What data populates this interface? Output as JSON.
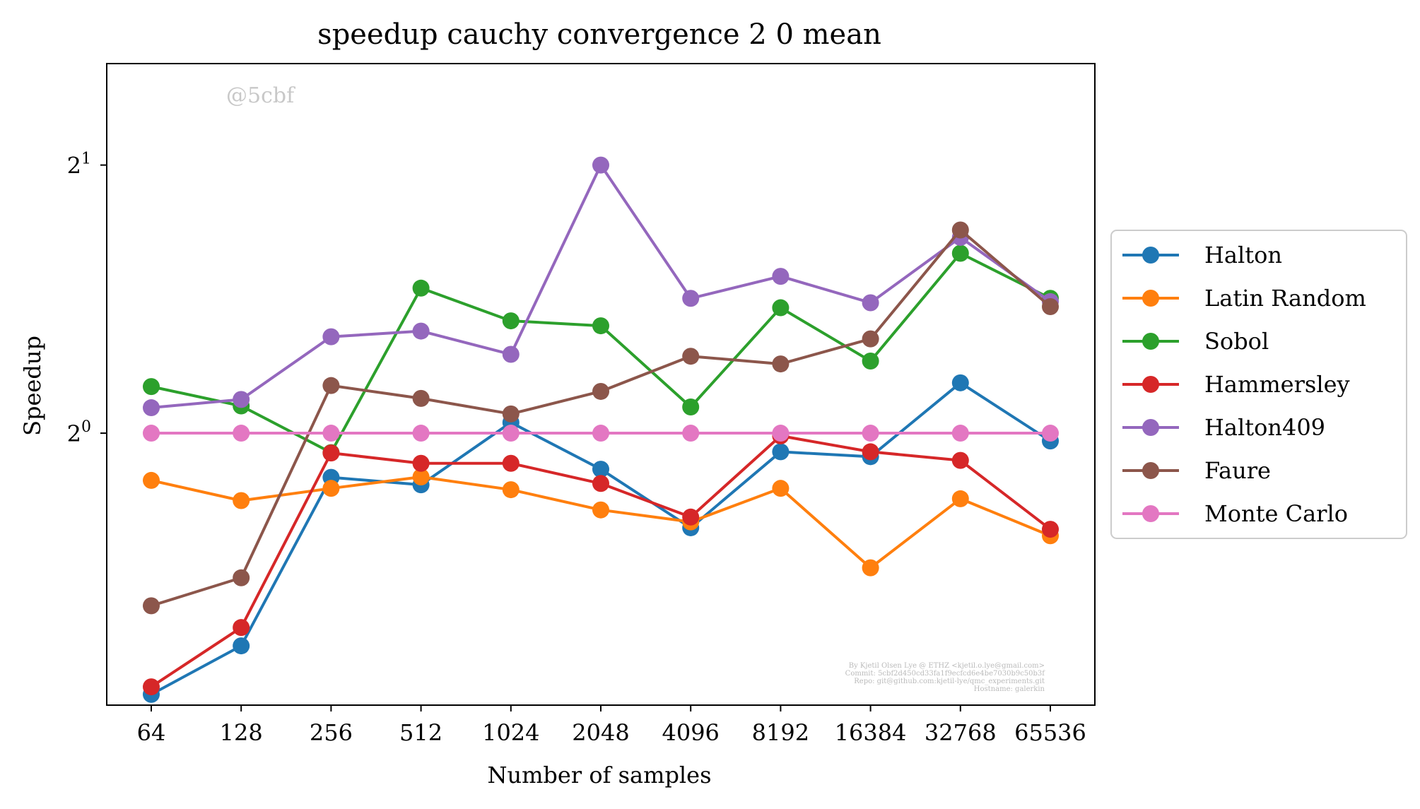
{
  "chart_data": {
    "type": "line",
    "title": "speedup cauchy convergence 2 0 mean",
    "xlabel": "Number of samples",
    "ylabel": "Speedup",
    "y_scale": "log2",
    "ylim": [
      0.495,
      2.6
    ],
    "y_ticks": [
      {
        "value": 1,
        "base": "2",
        "exp": "0"
      },
      {
        "value": 2,
        "base": "2",
        "exp": "1"
      }
    ],
    "categories": [
      "64",
      "128",
      "256",
      "512",
      "1024",
      "2048",
      "4096",
      "8192",
      "16384",
      "32768",
      "65536"
    ],
    "series": [
      {
        "name": "Halton",
        "color": "#1f77b4",
        "values": [
          0.509,
          0.577,
          0.892,
          0.875,
          1.028,
          0.911,
          0.783,
          0.953,
          0.941,
          1.139,
          0.98
        ]
      },
      {
        "name": "Latin Random",
        "color": "#ff7f0e",
        "values": [
          0.885,
          0.84,
          0.867,
          0.893,
          0.864,
          0.82,
          0.795,
          0.867,
          0.706,
          0.844,
          0.767
        ]
      },
      {
        "name": "Sobol",
        "color": "#2ca02c",
        "values": [
          1.128,
          1.073,
          0.951,
          1.455,
          1.337,
          1.32,
          1.07,
          1.383,
          1.205,
          1.592,
          1.417
        ]
      },
      {
        "name": "Hammersley",
        "color": "#d62728",
        "values": [
          0.519,
          0.605,
          0.95,
          0.925,
          0.925,
          0.878,
          0.805,
          0.993,
          0.953,
          0.932,
          0.78
        ]
      },
      {
        "name": "Halton409",
        "color": "#9467bd",
        "values": [
          1.068,
          1.091,
          1.283,
          1.302,
          1.226,
          2.0,
          1.417,
          1.5,
          1.401,
          1.659,
          1.405
        ]
      },
      {
        "name": "Faure",
        "color": "#8c564b",
        "values": [
          0.64,
          0.688,
          1.131,
          1.094,
          1.051,
          1.114,
          1.22,
          1.196,
          1.276,
          1.691,
          1.387
        ]
      },
      {
        "name": "Monte Carlo",
        "color": "#e377c2",
        "values": [
          1,
          1,
          1,
          1,
          1,
          1,
          1,
          1,
          1,
          1,
          1
        ]
      }
    ],
    "legend_position": "right-outside",
    "grid": false,
    "watermark": "@5cbf",
    "footer_lines": [
      "By Kjetil Olsen Lye @ ETHZ <kjetil.o.lye@gmail.com>",
      "Commit: 5cbf2d450cd33fa1f9ecfcd6e4be7030b9c50b3f",
      "Repo: git@github.com:kjetil-lye/qmc_experiments.git",
      "Hostname: galerkin"
    ]
  }
}
